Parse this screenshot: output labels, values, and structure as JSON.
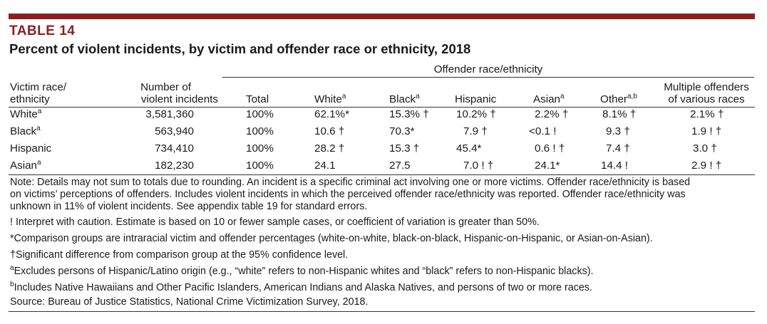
{
  "table": {
    "label": "TABLE 14",
    "title": "Percent of violent incidents, by victim and offender race or ethnicity, 2018"
  },
  "headers": {
    "group": "Offender race/ethnicity",
    "victim_l1": "Victim race/",
    "victim_l2": "ethnicity",
    "number_l1": "Number of",
    "number_l2": "violent incidents",
    "total": "Total",
    "white": "White",
    "white_sup": "a",
    "black": "Black",
    "black_sup": "a",
    "hispanic": "Hispanic",
    "asian": "Asian",
    "asian_sup": "a",
    "other": "Other",
    "other_sup": "a,b",
    "multi_l1": "Multiple offenders",
    "multi_l2": "of various races"
  },
  "rows": [
    {
      "label": "White",
      "sup": "a",
      "number": "3,581,360",
      "total": "100%",
      "white": "62.1%*",
      "black": "15.3% †",
      "hispanic": "10.2% †",
      "asian": "2.2% †",
      "other": "8.1% †",
      "multi": "2.1% †"
    },
    {
      "label": "Black",
      "sup": "a",
      "number": "563,940",
      "total": "100%",
      "white": "10.6 †",
      "black": "70.3*",
      "hispanic": "7.9 †",
      "asian": "<0.1 !",
      "other": "9.3 †",
      "multi": "1.9 ! †"
    },
    {
      "label": "Hispanic",
      "sup": "",
      "number": "734,410",
      "total": "100%",
      "white": "28.2 †",
      "black": "15.3 †",
      "hispanic": "45.4*",
      "asian": "0.6 ! †",
      "other": "7.4 †",
      "multi": "3.0 †"
    },
    {
      "label": "Asian",
      "sup": "a",
      "number": "182,230",
      "total": "100%",
      "white": "24.1",
      "black": "27.5",
      "hispanic": "7.0 ! †",
      "asian": "24.1*",
      "other": "14.4 !",
      "multi": "2.9 ! †"
    }
  ],
  "notes": {
    "note_l1": "Note: Details may not sum to totals due to rounding. An incident is a specific criminal act involving one or more victims. Offender race/ethnicity is based",
    "note_l2": "on victims’ perceptions of offenders. Includes violent incidents in which the perceived offender race/ethnicity was reported. Offender race/ethnicity was",
    "note_l3": "unknown in 11% of violent incidents. See appendix table 19 for standard errors.",
    "caution": "! Interpret with caution. Estimate is based on 10 or fewer sample cases, or coefficient of variation is greater than 50%.",
    "comparison": "*Comparison groups are intraracial victim and offender percentages (white-on-white, black-on-black, Hispanic-on-Hispanic, or Asian-on-Asian).",
    "significant": "†Significant difference from comparison group at the 95% confidence level.",
    "fn_a_mark": "a",
    "fn_a": "Excludes persons of Hispanic/Latino origin (e.g., “white” refers to non-Hispanic whites and “black” refers to non-Hispanic blacks).",
    "fn_b_mark": "b",
    "fn_b": "Includes Native Hawaiians and Other Pacific Islanders, American Indians and Alaska Natives, and persons of two or more races.",
    "source": "Source: Bureau of Justice Statistics, National Crime Victimization Survey, 2018."
  },
  "colors": {
    "accent": "#8b1f1f",
    "text": "#1a1a1a",
    "rule": "#333333"
  }
}
